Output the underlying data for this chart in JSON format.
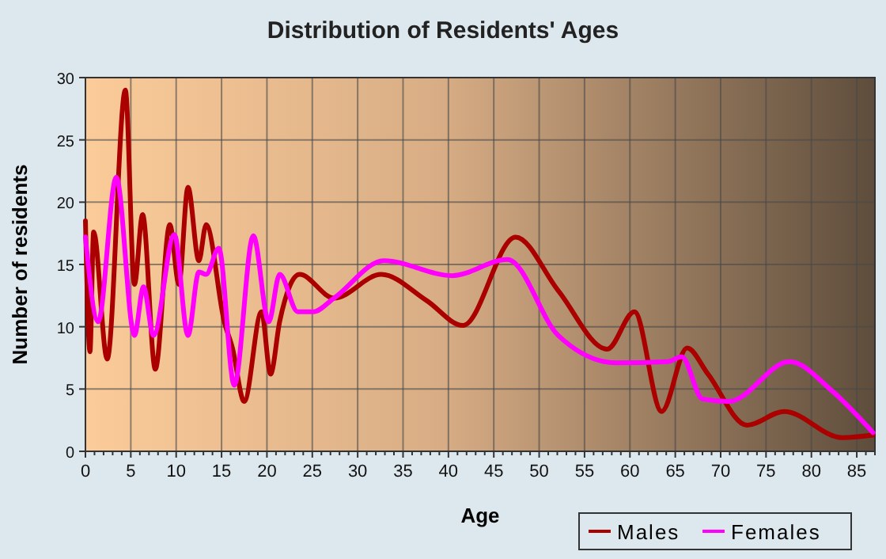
{
  "chart_data": {
    "type": "line",
    "title": "Distribution of Residents' Ages",
    "xlabel": "Age",
    "ylabel": "Number of residents",
    "xlim": [
      0,
      87
    ],
    "xticks": [
      0,
      5,
      10,
      15,
      20,
      25,
      30,
      35,
      40,
      45,
      50,
      55,
      60,
      65,
      70,
      75,
      80,
      85
    ],
    "ylim": [
      0,
      30
    ],
    "yticks": [
      0,
      5,
      10,
      15,
      20,
      25,
      30
    ],
    "grid": true,
    "legend": "bottom right",
    "series": [
      {
        "name": "Males",
        "color": "#aa0000",
        "x": [
          0,
          0.5,
          0.9,
          2.4,
          4.4,
          5.4,
          6.3,
          7.7,
          9.3,
          10.3,
          11.3,
          12.5,
          13.3,
          15.3,
          16.2,
          17.5,
          19.4,
          20.4,
          21.4,
          23.6,
          27.4,
          32.6,
          37.6,
          41.6,
          47.4,
          52.1,
          57.5,
          60.5,
          63.5,
          66.3,
          68.6,
          72.9,
          77,
          83.4,
          86.8
        ],
        "values": [
          18.5,
          8,
          17.6,
          7.4,
          29,
          13.4,
          19,
          6.6,
          18.2,
          13.4,
          21.2,
          15.3,
          18.2,
          10.4,
          8.3,
          4,
          11.2,
          6.2,
          10.4,
          14.2,
          12.3,
          14.2,
          12.1,
          10.1,
          17.2,
          12.9,
          8.2,
          11.2,
          3.2,
          8.3,
          6.2,
          2.1,
          3.2,
          1.1,
          1.3
        ]
      },
      {
        "name": "Females",
        "color": "#ff00ff",
        "x": [
          0,
          1.4,
          3.4,
          5.4,
          6.4,
          7.5,
          9.8,
          11.3,
          12.5,
          13.3,
          14.7,
          16.4,
          18.5,
          20.2,
          21.4,
          23.4,
          25.1,
          27.4,
          32.9,
          40.4,
          46.5,
          52.1,
          58.5,
          64.2,
          65.7,
          68,
          70.9,
          77.6,
          82.2,
          86.8
        ],
        "values": [
          17.2,
          10.4,
          22,
          9.3,
          13.2,
          9.3,
          17.4,
          9.3,
          14.4,
          14.2,
          16.3,
          5.3,
          17.3,
          10.4,
          14.2,
          11.2,
          11.2,
          12.3,
          15.3,
          14.1,
          15.4,
          9.3,
          7.1,
          7.2,
          7.6,
          4.2,
          4,
          7.2,
          4.9,
          1.5
        ]
      }
    ]
  }
}
